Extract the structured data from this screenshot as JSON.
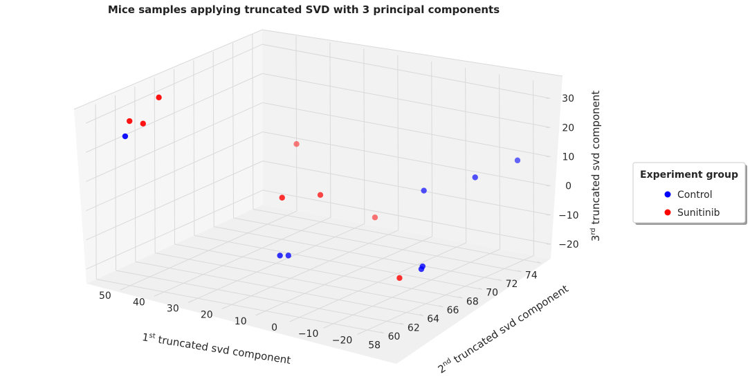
{
  "chart_data": {
    "type": "scatter",
    "title": "Mice samples applying truncated SVD with 3 principal components",
    "axes": {
      "x": {
        "label_prefix": "1",
        "label_sup": "st",
        "label_rest": " truncated svd component",
        "range": [
          57,
          75
        ],
        "ticks": [
          58,
          60,
          62,
          64,
          66,
          68,
          70,
          72,
          74
        ]
      },
      "y": {
        "label_prefix": "2",
        "label_sup": "nd",
        "label_rest": " truncated svd component",
        "range": [
          -25,
          60
        ],
        "ticks": [
          -20,
          -10,
          0,
          10,
          20,
          30,
          40,
          50
        ]
      },
      "z": {
        "label_prefix": "3",
        "label_sup": "rd",
        "label_rest": " truncated svd component",
        "range": [
          -25,
          35
        ],
        "ticks": [
          -20,
          -10,
          0,
          10,
          20,
          30
        ]
      }
    },
    "grid": true,
    "legend": {
      "title": "Experiment group",
      "placement": "right",
      "entries": [
        {
          "name": "Control",
          "color": "#0000ff"
        },
        {
          "name": "Sunitinib",
          "color": "#ff0000"
        }
      ]
    },
    "series": [
      {
        "name": "Control",
        "color": "#0000ff",
        "points": [
          {
            "x": 61.0,
            "y": 60.0,
            "z": 19.5
          },
          {
            "x": 69.0,
            "y": -5.0,
            "z": 3.0
          },
          {
            "x": 69.4,
            "y": -19.0,
            "z": 10.0
          },
          {
            "x": 72.0,
            "y": -24.0,
            "z": 13.0
          },
          {
            "x": 66.2,
            "y": 27.0,
            "z": -22.0
          },
          {
            "x": 65.0,
            "y": 26.0,
            "z": -20.0
          },
          {
            "x": 65.4,
            "y": -14.6,
            "z": -16.4
          },
          {
            "x": 65.6,
            "y": -14.4,
            "z": -15.8
          }
        ]
      },
      {
        "name": "Sunitinib",
        "color": "#ff0000",
        "points": [
          {
            "x": 61.0,
            "y": 54.7,
            "z": 25.0
          },
          {
            "x": 61.0,
            "y": 58.7,
            "z": 25.0
          },
          {
            "x": 61.0,
            "y": 50.0,
            "z": 35.0
          },
          {
            "x": 65.0,
            "y": 25.3,
            "z": 0.0
          },
          {
            "x": 68.0,
            "y": 22.7,
            "z": -3.0
          },
          {
            "x": 65.0,
            "y": -9.3,
            "z": -20.0
          },
          {
            "x": 75.0,
            "y": 50.0,
            "z": -2.0
          },
          {
            "x": 74.0,
            "y": 24.0,
            "z": -20.0
          }
        ]
      }
    ]
  }
}
